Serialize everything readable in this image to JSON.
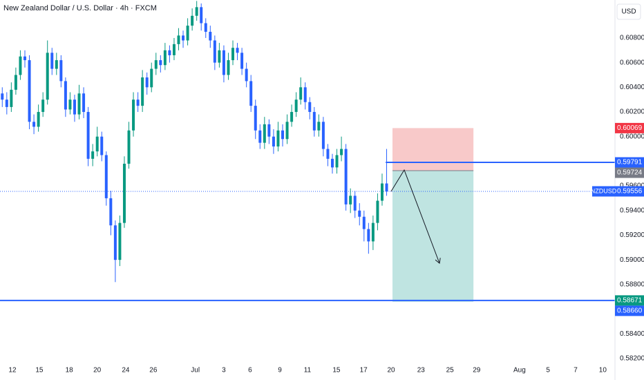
{
  "chart_data": {
    "type": "candlestick",
    "title": "New Zealand Dollar / U.S. Dollar · 4h · FXCM",
    "currency": "USD",
    "x": [
      0.5,
      1.5,
      2.5,
      3.5,
      4.5,
      5.5,
      6.5,
      7.5,
      8.5,
      9.5,
      10.5,
      11.5,
      12.5,
      13.5,
      14.5,
      15.5,
      16.5,
      17.5,
      18.5,
      19.5,
      20.5,
      21.5,
      22.5,
      23.5,
      24.5,
      25.5,
      26.5,
      27.5,
      28.5,
      29.5,
      30.5,
      31.5,
      32.5,
      33.5,
      34.5,
      35.5,
      36.5,
      37.5,
      38.5,
      39.5,
      40.5,
      41.5,
      42.5,
      43.5,
      44.5,
      45.5,
      46.5,
      47.5,
      48.5,
      49.5,
      50.5,
      51.5,
      52.5,
      53.5,
      54.5,
      55.5,
      56.5,
      57.5,
      58.5,
      59.5,
      60.5,
      61.5,
      62.5,
      63.5,
      64.5,
      65.5,
      66.5,
      67.5,
      68.5,
      69.5,
      70.5,
      71.5,
      72.5,
      73.5,
      74.5,
      75.5,
      76.5,
      77.5,
      78.5,
      79.5,
      80.5,
      81.5,
      82.5,
      83.5,
      84.5,
      85.5
    ],
    "open": [
      0.6035,
      0.603,
      0.6024,
      0.6038,
      0.605,
      0.6065,
      0.6062,
      0.6012,
      0.6008,
      0.602,
      0.603,
      0.6068,
      0.6055,
      0.6062,
      0.6045,
      0.6022,
      0.603,
      0.6018,
      0.6035,
      0.602,
      0.5982,
      0.5988,
      0.6,
      0.5985,
      0.595,
      0.5928,
      0.59,
      0.593,
      0.5978,
      0.6005,
      0.603,
      0.6025,
      0.6048,
      0.604,
      0.6055,
      0.6062,
      0.6058,
      0.607,
      0.6066,
      0.6075,
      0.6082,
      0.6078,
      0.609,
      0.6098,
      0.6105,
      0.6092,
      0.6085,
      0.6078,
      0.606,
      0.607,
      0.605,
      0.6062,
      0.6072,
      0.6068,
      0.6055,
      0.6045,
      0.6025,
      0.6005,
      0.5995,
      0.601,
      0.6,
      0.5992,
      0.6005,
      0.5998,
      0.6012,
      0.602,
      0.603,
      0.604,
      0.6028,
      0.602,
      0.6005,
      0.6012,
      0.599,
      0.5982,
      0.5975,
      0.5985,
      0.599,
      0.5945,
      0.5952,
      0.594,
      0.5935,
      0.5925,
      0.5915,
      0.593,
      0.5948,
      0.5962
    ],
    "high": [
      0.604,
      0.6036,
      0.6044,
      0.6056,
      0.607,
      0.607,
      0.6066,
      0.6018,
      0.6026,
      0.6036,
      0.6078,
      0.6072,
      0.6068,
      0.6066,
      0.6048,
      0.6036,
      0.6034,
      0.6042,
      0.604,
      0.6024,
      0.5994,
      0.6008,
      0.6004,
      0.5988,
      0.5956,
      0.5932,
      0.5936,
      0.5984,
      0.6012,
      0.6036,
      0.6036,
      0.6054,
      0.6052,
      0.606,
      0.6068,
      0.6066,
      0.6076,
      0.6074,
      0.608,
      0.6088,
      0.6086,
      0.6096,
      0.6104,
      0.611,
      0.6108,
      0.6096,
      0.609,
      0.6082,
      0.6076,
      0.6074,
      0.6068,
      0.6078,
      0.6076,
      0.6072,
      0.606,
      0.605,
      0.603,
      0.601,
      0.6016,
      0.6014,
      0.6006,
      0.6012,
      0.601,
      0.6018,
      0.6026,
      0.6036,
      0.6048,
      0.6044,
      0.6032,
      0.6024,
      0.6018,
      0.6016,
      0.5994,
      0.5986,
      0.599,
      0.6,
      0.5994,
      0.5958,
      0.5956,
      0.5946,
      0.594,
      0.593,
      0.5936,
      0.5954,
      0.597,
      0.599
    ],
    "low": [
      0.6024,
      0.6018,
      0.602,
      0.6034,
      0.6046,
      0.6056,
      0.6006,
      0.6002,
      0.6004,
      0.6016,
      0.6026,
      0.605,
      0.605,
      0.604,
      0.6016,
      0.6018,
      0.6012,
      0.6014,
      0.6015,
      0.5976,
      0.5976,
      0.5984,
      0.598,
      0.5944,
      0.592,
      0.5882,
      0.5895,
      0.5926,
      0.5974,
      0.6,
      0.602,
      0.602,
      0.6034,
      0.6036,
      0.605,
      0.6052,
      0.6054,
      0.606,
      0.6062,
      0.607,
      0.6072,
      0.6074,
      0.6086,
      0.6094,
      0.6086,
      0.608,
      0.6072,
      0.6054,
      0.6056,
      0.6044,
      0.6046,
      0.6058,
      0.6062,
      0.605,
      0.604,
      0.602,
      0.5998,
      0.599,
      0.599,
      0.5994,
      0.5986,
      0.5988,
      0.5992,
      0.5994,
      0.6008,
      0.6016,
      0.6026,
      0.6022,
      0.6014,
      0.6,
      0.6,
      0.5984,
      0.5976,
      0.597,
      0.597,
      0.598,
      0.594,
      0.5938,
      0.5934,
      0.5928,
      0.5915,
      0.5905,
      0.5908,
      0.5924,
      0.5944,
      0.5952
    ],
    "close": [
      0.603,
      0.6024,
      0.6038,
      0.605,
      0.6065,
      0.6062,
      0.6012,
      0.6008,
      0.602,
      0.603,
      0.6068,
      0.6055,
      0.6062,
      0.6045,
      0.6022,
      0.603,
      0.6018,
      0.6035,
      0.602,
      0.5982,
      0.5988,
      0.6,
      0.5985,
      0.595,
      0.5928,
      0.59,
      0.593,
      0.5978,
      0.6005,
      0.603,
      0.6025,
      0.6048,
      0.604,
      0.6055,
      0.6062,
      0.6058,
      0.607,
      0.6066,
      0.6075,
      0.6082,
      0.6078,
      0.609,
      0.6098,
      0.6105,
      0.6092,
      0.6085,
      0.6078,
      0.606,
      0.607,
      0.605,
      0.6062,
      0.6072,
      0.6068,
      0.6055,
      0.6045,
      0.6025,
      0.6005,
      0.5995,
      0.601,
      0.6,
      0.5992,
      0.6005,
      0.5998,
      0.6012,
      0.602,
      0.603,
      0.604,
      0.6028,
      0.602,
      0.6005,
      0.6012,
      0.599,
      0.5982,
      0.5975,
      0.5985,
      0.599,
      0.5945,
      0.5952,
      0.594,
      0.5935,
      0.5925,
      0.5915,
      0.593,
      0.5948,
      0.5962,
      0.59556
    ],
    "up_color": "#089981",
    "down_color": "#2962ff",
    "grid": false,
    "xlim": [
      0,
      136
    ],
    "ylim": [
      0.58166,
      0.61108
    ],
    "xticks": [
      {
        "value": 2.75,
        "label": "12"
      },
      {
        "value": 8.7,
        "label": "15"
      },
      {
        "value": 15.3,
        "label": "18"
      },
      {
        "value": 21.5,
        "label": "20"
      },
      {
        "value": 27.8,
        "label": "24"
      },
      {
        "value": 33.9,
        "label": "26"
      },
      {
        "value": 43.2,
        "label": "Jul"
      },
      {
        "value": 49.5,
        "label": "3"
      },
      {
        "value": 55.3,
        "label": "6"
      },
      {
        "value": 61.9,
        "label": "9"
      },
      {
        "value": 68.0,
        "label": "11"
      },
      {
        "value": 74.4,
        "label": "15"
      },
      {
        "value": 80.4,
        "label": "17"
      },
      {
        "value": 86.5,
        "label": "20"
      },
      {
        "value": 93.1,
        "label": "23"
      },
      {
        "value": 99.5,
        "label": "25"
      },
      {
        "value": 105.4,
        "label": "29"
      },
      {
        "value": 114.9,
        "label": "Aug"
      },
      {
        "value": 121.2,
        "label": "5"
      },
      {
        "value": 127.3,
        "label": "7"
      },
      {
        "value": 133.3,
        "label": "10"
      }
    ],
    "yticks": [
      {
        "value": 0.608,
        "label": "0.60800"
      },
      {
        "value": 0.606,
        "label": "0.60600"
      },
      {
        "value": 0.604,
        "label": "0.60400"
      },
      {
        "value": 0.602,
        "label": "0.60200"
      },
      {
        "value": 0.6,
        "label": "0.60000"
      },
      {
        "value": 0.596,
        "label": "0.59600"
      },
      {
        "value": 0.594,
        "label": "0.59400"
      },
      {
        "value": 0.592,
        "label": "0.59200"
      },
      {
        "value": 0.59,
        "label": "0.59000"
      },
      {
        "value": 0.588,
        "label": "0.58800"
      },
      {
        "value": 0.584,
        "label": "0.58400"
      },
      {
        "value": 0.582,
        "label": "0.58200"
      }
    ],
    "position": {
      "x_start": 86.8,
      "x_end": 104.7,
      "stop": {
        "value": 0.60069,
        "label": "0.60069",
        "color": "#f23645"
      },
      "entry": {
        "value": 0.59724,
        "label": "0.59724",
        "color": "#787b86"
      },
      "target": {
        "value": 0.5866,
        "label": "0.58660",
        "color": "#2962ff"
      },
      "stop_fill": "#f8c9c9",
      "target_fill": "#bfe4e1"
    },
    "levels": [
      {
        "value": 0.59791,
        "label": "0.59791",
        "x_start": 85.3,
        "color": "#2962ff",
        "label_color": "#2962ff"
      },
      {
        "value": 0.58671,
        "label": "0.58671",
        "x_start": 0,
        "color": "#2962ff",
        "label_color": "#089981"
      }
    ],
    "last_price": {
      "value": 0.59556,
      "label": "0.59556",
      "symbol": "NZDUSD",
      "color": "#2962ff"
    }
  }
}
